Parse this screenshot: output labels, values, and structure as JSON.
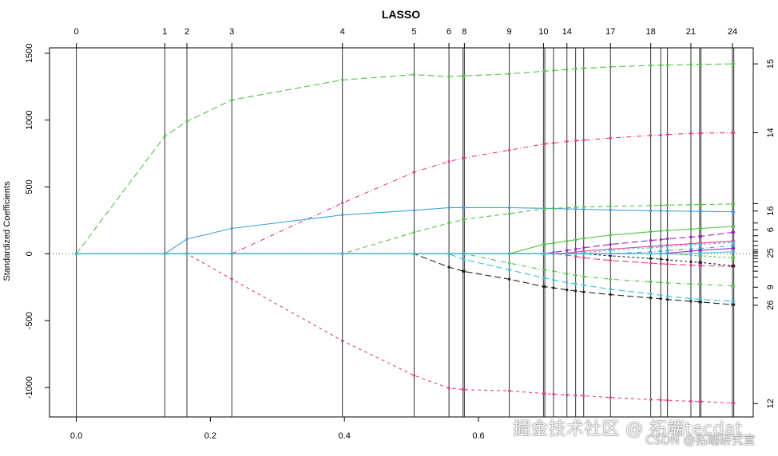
{
  "chart_data": {
    "type": "line",
    "title": "LASSO",
    "xlabel": "",
    "ylabel": "Standardized Coefficients",
    "xlim": [
      -0.04,
      1.01
    ],
    "ylim": [
      -1220,
      1540
    ],
    "x_ticks": [
      0.0,
      0.2,
      0.4,
      0.6
    ],
    "x_tick_labels": [
      "0.0",
      "0.2",
      "0.4",
      "0.6"
    ],
    "y_ticks": [
      -1000,
      -500,
      0,
      500,
      1000,
      1500
    ],
    "y_tick_labels": [
      "-1000",
      "-500",
      "0",
      "500",
      "1000",
      "1500"
    ],
    "zero_line": true,
    "steps": [
      0.0,
      0.132,
      0.165,
      0.232,
      0.397,
      0.504,
      0.556,
      0.577,
      0.579,
      0.646,
      0.697,
      0.699,
      0.712,
      0.732,
      0.745,
      0.757,
      0.797,
      0.857,
      0.872,
      0.882,
      0.917,
      0.93,
      0.932,
      0.979,
      0.981
    ],
    "step_labels": [
      {
        "x": 0.0,
        "label": "0"
      },
      {
        "x": 0.132,
        "label": "1"
      },
      {
        "x": 0.165,
        "label": "2"
      },
      {
        "x": 0.232,
        "label": "3"
      },
      {
        "x": 0.397,
        "label": "4"
      },
      {
        "x": 0.504,
        "label": "5"
      },
      {
        "x": 0.556,
        "label": "6"
      },
      {
        "x": 0.579,
        "label": "8"
      },
      {
        "x": 0.646,
        "label": "9"
      },
      {
        "x": 0.697,
        "label": "10"
      },
      {
        "x": 0.732,
        "label": "14"
      },
      {
        "x": 0.797,
        "label": "17"
      },
      {
        "x": 0.857,
        "label": "18"
      },
      {
        "x": 0.917,
        "label": "21"
      },
      {
        "x": 0.979,
        "label": "24"
      }
    ],
    "right_labels": [
      {
        "y": 1420,
        "label": "15"
      },
      {
        "y": 905,
        "label": "14"
      },
      {
        "y": 320,
        "label": "16"
      },
      {
        "y": 180,
        "label": "6"
      },
      {
        "y": 5,
        "label": "25"
      },
      {
        "y": -250,
        "label": "9"
      },
      {
        "y": -385,
        "label": "26"
      },
      {
        "y": -1120,
        "label": "12"
      }
    ],
    "right_ticks": [
      1420,
      905,
      375,
      320,
      230,
      180,
      135,
      95,
      60,
      30,
      15,
      5,
      -15,
      -35,
      -60,
      -95,
      -130,
      -175,
      -250,
      -330,
      -385,
      -1120
    ],
    "series": [
      {
        "color": "#55c24a",
        "dash": "8,4",
        "values": [
          0,
          880,
          990,
          1150,
          1300,
          1340,
          1325,
          1330,
          1330,
          1345,
          1365,
          1366,
          1370,
          1378,
          1383,
          1387,
          1398,
          1408,
          1410,
          1412,
          1415,
          1416,
          1416,
          1420,
          1420
        ]
      },
      {
        "color": "#e0408a",
        "dash": "4,4",
        "values": [
          0,
          0,
          0,
          -190,
          -650,
          -910,
          -1005,
          -1015,
          -1016,
          -1025,
          -1045,
          -1046,
          -1050,
          -1055,
          -1058,
          -1062,
          -1075,
          -1090,
          -1093,
          -1096,
          -1103,
          -1105,
          -1105,
          -1115,
          -1116
        ]
      },
      {
        "color": "#e0408a",
        "dash": "6,3,1,3",
        "values": [
          0,
          0,
          0,
          0,
          380,
          610,
          690,
          715,
          717,
          775,
          820,
          821,
          828,
          840,
          845,
          850,
          865,
          885,
          888,
          892,
          900,
          902,
          903,
          905,
          905
        ]
      },
      {
        "color": "#3fa0dc",
        "dash": "",
        "values": [
          0,
          0,
          110,
          190,
          290,
          325,
          345,
          345,
          345,
          345,
          340,
          340,
          338,
          336,
          334,
          333,
          328,
          322,
          321,
          320,
          318,
          317,
          317,
          315,
          315
        ]
      },
      {
        "color": "#55c24a",
        "dash": "6,4",
        "values": [
          0,
          0,
          0,
          0,
          0,
          160,
          230,
          255,
          258,
          300,
          335,
          336,
          340,
          345,
          348,
          350,
          355,
          360,
          362,
          364,
          367,
          368,
          368,
          372,
          372
        ]
      },
      {
        "color": "#3fbfd6",
        "dash": "8,4",
        "values": [
          0,
          0,
          0,
          0,
          0,
          0,
          0,
          -40,
          -42,
          -120,
          -180,
          -182,
          -195,
          -215,
          -225,
          -235,
          -265,
          -300,
          -310,
          -318,
          -335,
          -340,
          -342,
          -355,
          -356
        ]
      },
      {
        "color": "#222222",
        "dash": "8,4",
        "values": [
          0,
          0,
          0,
          0,
          0,
          0,
          -100,
          -130,
          -132,
          -190,
          -245,
          -246,
          -255,
          -270,
          -278,
          -285,
          -305,
          -330,
          -336,
          -342,
          -355,
          -360,
          -361,
          -380,
          -381
        ]
      },
      {
        "color": "#55c24a",
        "dash": "6,3,1,3",
        "values": [
          0,
          0,
          0,
          0,
          0,
          0,
          0,
          0,
          0,
          -70,
          -120,
          -121,
          -130,
          -150,
          -160,
          -170,
          -190,
          -210,
          -214,
          -218,
          -225,
          -228,
          -228,
          -240,
          -241
        ]
      },
      {
        "color": "#55c24a",
        "dash": "",
        "values": [
          0,
          0,
          0,
          0,
          0,
          0,
          0,
          0,
          0,
          0,
          70,
          71,
          80,
          95,
          105,
          115,
          140,
          165,
          170,
          175,
          185,
          190,
          190,
          205,
          206
        ]
      },
      {
        "color": "#a020c0",
        "dash": "8,4",
        "values": [
          0,
          0,
          0,
          0,
          0,
          0,
          0,
          0,
          0,
          0,
          0,
          0,
          10,
          25,
          35,
          45,
          70,
          100,
          106,
          112,
          125,
          130,
          131,
          160,
          162
        ]
      },
      {
        "color": "#e0408a",
        "dash": "",
        "values": [
          0,
          0,
          0,
          0,
          0,
          0,
          0,
          0,
          0,
          0,
          0,
          0,
          0,
          5,
          12,
          20,
          35,
          55,
          60,
          65,
          75,
          80,
          80,
          95,
          95
        ]
      },
      {
        "color": "#3fbfd6",
        "dash": "3,3",
        "values": [
          0,
          0,
          0,
          0,
          0,
          0,
          0,
          0,
          0,
          0,
          0,
          0,
          0,
          0,
          0,
          8,
          25,
          45,
          50,
          55,
          65,
          70,
          70,
          85,
          85
        ]
      },
      {
        "color": "#e0408a",
        "dash": "8,4",
        "values": [
          0,
          0,
          0,
          0,
          0,
          0,
          0,
          0,
          0,
          0,
          0,
          0,
          0,
          -10,
          -20,
          -30,
          -50,
          -70,
          -74,
          -78,
          -85,
          -88,
          -88,
          -95,
          -95
        ]
      },
      {
        "color": "#222222",
        "dash": "3,3",
        "values": [
          0,
          0,
          0,
          0,
          0,
          0,
          0,
          0,
          0,
          0,
          0,
          0,
          0,
          0,
          0,
          0,
          -15,
          -35,
          -40,
          -45,
          -60,
          -65,
          -65,
          -90,
          -90
        ]
      },
      {
        "color": "#3fa0dc",
        "dash": "6,3,1,3",
        "values": [
          0,
          0,
          0,
          0,
          0,
          0,
          0,
          0,
          0,
          0,
          0,
          0,
          0,
          0,
          0,
          0,
          0,
          15,
          20,
          25,
          35,
          40,
          40,
          60,
          60
        ]
      },
      {
        "color": "#a020c0",
        "dash": "",
        "values": [
          0,
          0,
          0,
          0,
          0,
          0,
          0,
          0,
          0,
          0,
          0,
          0,
          0,
          0,
          0,
          0,
          0,
          0,
          0,
          5,
          20,
          25,
          26,
          40,
          40
        ]
      },
      {
        "color": "#55c24a",
        "dash": "3,3",
        "values": [
          0,
          0,
          0,
          0,
          0,
          0,
          0,
          0,
          0,
          0,
          0,
          0,
          0,
          0,
          0,
          0,
          0,
          0,
          0,
          0,
          -10,
          -15,
          -15,
          -30,
          -30
        ]
      },
      {
        "color": "#3fbfd6",
        "dash": "",
        "values": [
          0,
          0,
          0,
          0,
          0,
          0,
          0,
          0,
          0,
          0,
          0,
          0,
          0,
          0,
          0,
          0,
          0,
          0,
          0,
          0,
          0,
          5,
          6,
          15,
          15
        ]
      }
    ]
  },
  "watermark": {
    "main": "掘金技术社区 @ 拓端tecdat",
    "sub": "CSDN @拓端研究室"
  }
}
